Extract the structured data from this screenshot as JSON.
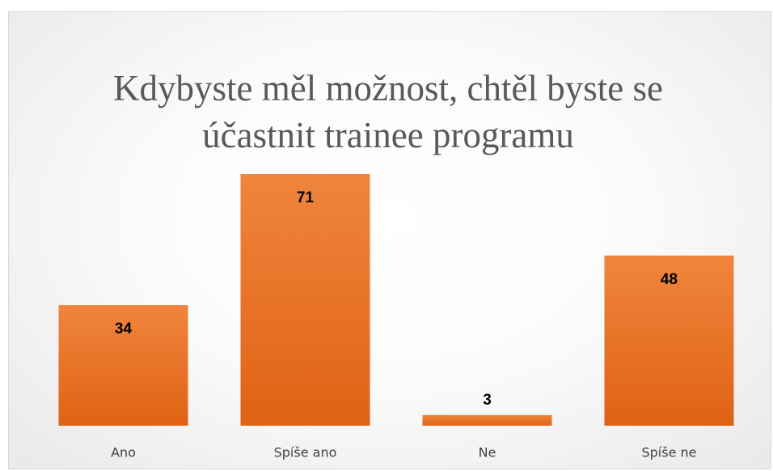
{
  "chart_data": {
    "type": "bar",
    "title": "Kdybyste měl možnost, chtěl byste se účastnit trainee programu",
    "categories": [
      "Ano",
      "Spíše ano",
      "Ne",
      "Spíše ne"
    ],
    "values": [
      34,
      71,
      3,
      48
    ],
    "color": "#e8732a"
  }
}
